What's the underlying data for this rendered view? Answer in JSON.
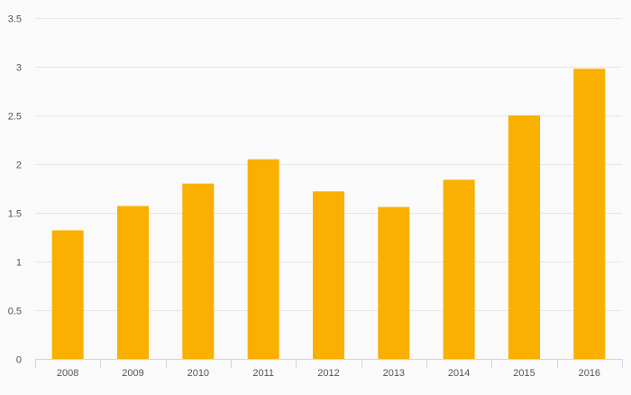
{
  "chart_data": {
    "type": "bar",
    "categories": [
      "2008",
      "2009",
      "2010",
      "2011",
      "2012",
      "2013",
      "2014",
      "2015",
      "2016"
    ],
    "values": [
      1.32,
      1.57,
      1.8,
      2.05,
      1.72,
      1.56,
      1.84,
      2.5,
      2.98
    ],
    "title": "",
    "xlabel": "",
    "ylabel": "",
    "ylim": [
      0,
      3.5
    ],
    "yticks": [
      "0",
      "0.5",
      "1",
      "1.5",
      "2",
      "2.5",
      "3",
      "3.5"
    ],
    "grid": true,
    "legend": "none"
  },
  "colors": {
    "bar": "#f9b000",
    "grid": "#e6e6e6",
    "axis": "#ccd6eb",
    "background": "#fafafa",
    "text": "#555555"
  }
}
